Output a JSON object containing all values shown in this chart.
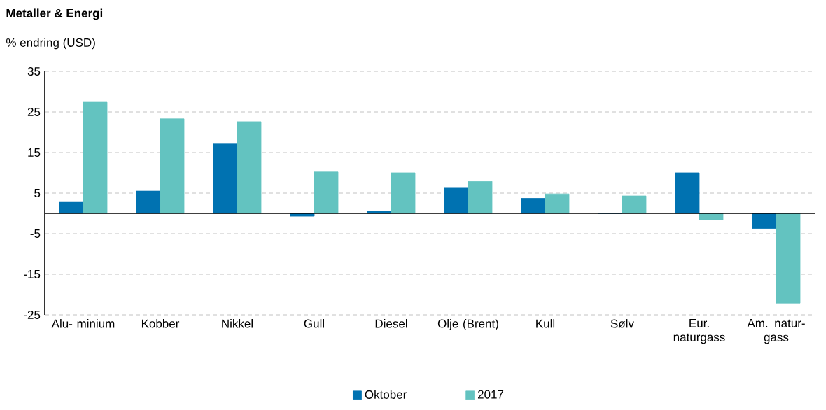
{
  "chart_data": {
    "type": "bar",
    "title": "Metaller & Energi",
    "subtitle": "% endring (USD)",
    "categories": [
      "Alu- minium",
      "Kobber",
      "Nikkel",
      "Gull",
      "Diesel",
      "Olje (Brent)",
      "Kull",
      "Sølv",
      "Eur. naturgass",
      "Am. natur- gass"
    ],
    "series": [
      {
        "name": "Oktober",
        "color": "#0072b1",
        "values": [
          2.9,
          5.5,
          17.1,
          -0.7,
          0.6,
          6.4,
          3.7,
          0,
          10.0,
          -3.7
        ]
      },
      {
        "name": "2017",
        "color": "#63c3c0",
        "values": [
          27.4,
          23.3,
          22.6,
          10.2,
          10.0,
          7.9,
          4.8,
          4.3,
          -1.6,
          -22.1
        ]
      }
    ],
    "ylim": [
      -25,
      35
    ],
    "yticks": [
      -25,
      -15,
      -5,
      5,
      15,
      25,
      35
    ],
    "grid": "y",
    "legend": "bottom"
  }
}
